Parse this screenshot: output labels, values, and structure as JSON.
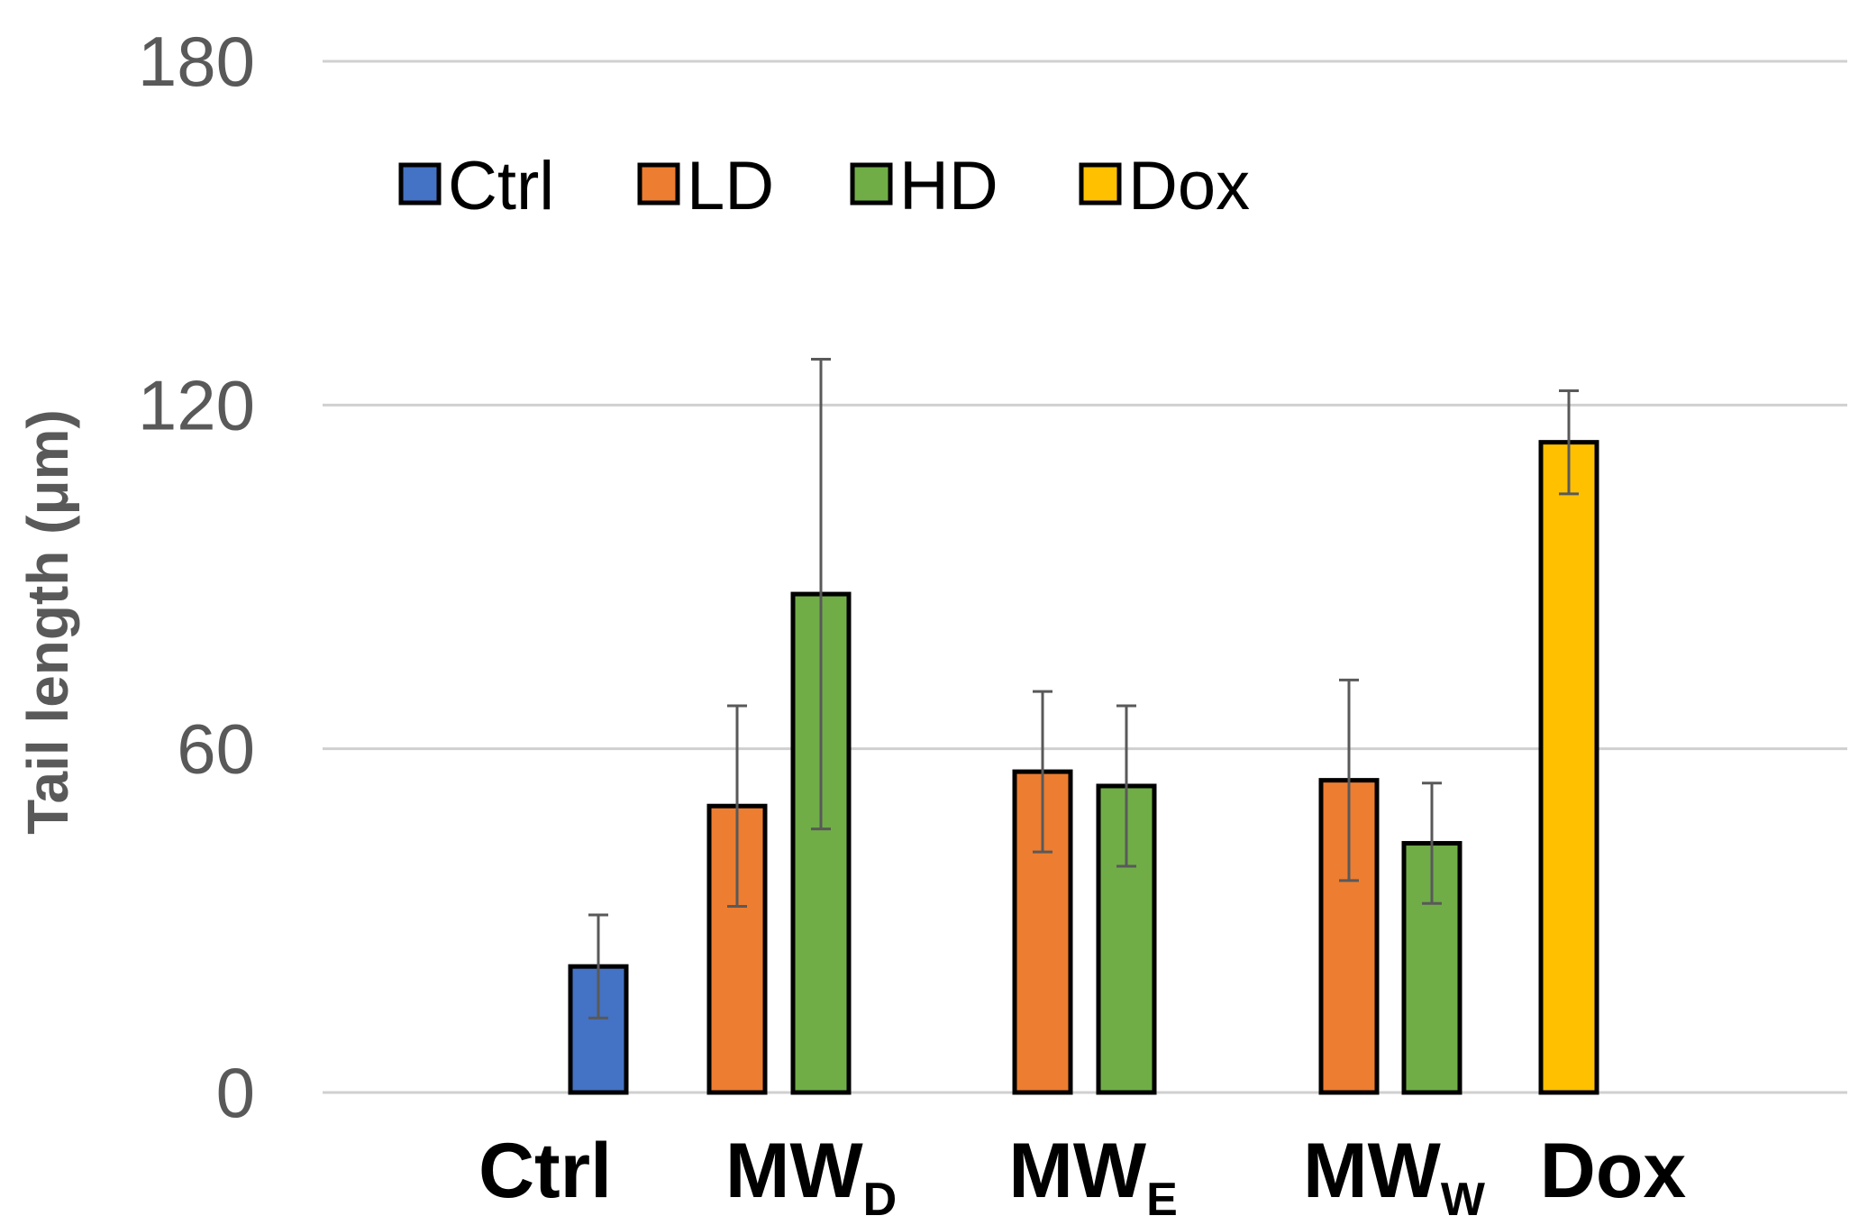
{
  "chart_data": {
    "type": "bar",
    "title": "",
    "xlabel": "",
    "ylabel": "Tail length (μm)",
    "ylim": [
      0,
      180
    ],
    "yticks": [
      0,
      60,
      120,
      180
    ],
    "grid": true,
    "legend_position": "top-left",
    "legend": [
      {
        "name": "Ctrl",
        "color": "#4472c4"
      },
      {
        "name": "LD",
        "color": "#ed7d31"
      },
      {
        "name": "HD",
        "color": "#70ad47"
      },
      {
        "name": "Dox",
        "color": "#ffc000"
      }
    ],
    "categories": [
      {
        "main": "Ctrl",
        "sub": ""
      },
      {
        "main": "MW",
        "sub": "D"
      },
      {
        "main": "MW",
        "sub": "E"
      },
      {
        "main": "MW",
        "sub": "W"
      },
      {
        "main": "Dox",
        "sub": ""
      }
    ],
    "bars": [
      {
        "category": 0,
        "series": "Ctrl",
        "value": 22,
        "error": 9
      },
      {
        "category": 1,
        "series": "LD",
        "value": 50,
        "error": 17.5
      },
      {
        "category": 1,
        "series": "HD",
        "value": 87,
        "error": 41
      },
      {
        "category": 2,
        "series": "LD",
        "value": 56,
        "error": 14
      },
      {
        "category": 2,
        "series": "HD",
        "value": 53.5,
        "error": 14
      },
      {
        "category": 3,
        "series": "LD",
        "value": 54.5,
        "error": 17.5
      },
      {
        "category": 3,
        "series": "HD",
        "value": 43.5,
        "error": 10.5
      },
      {
        "category": 4,
        "series": "Dox",
        "value": 113.5,
        "error": 9
      }
    ]
  }
}
